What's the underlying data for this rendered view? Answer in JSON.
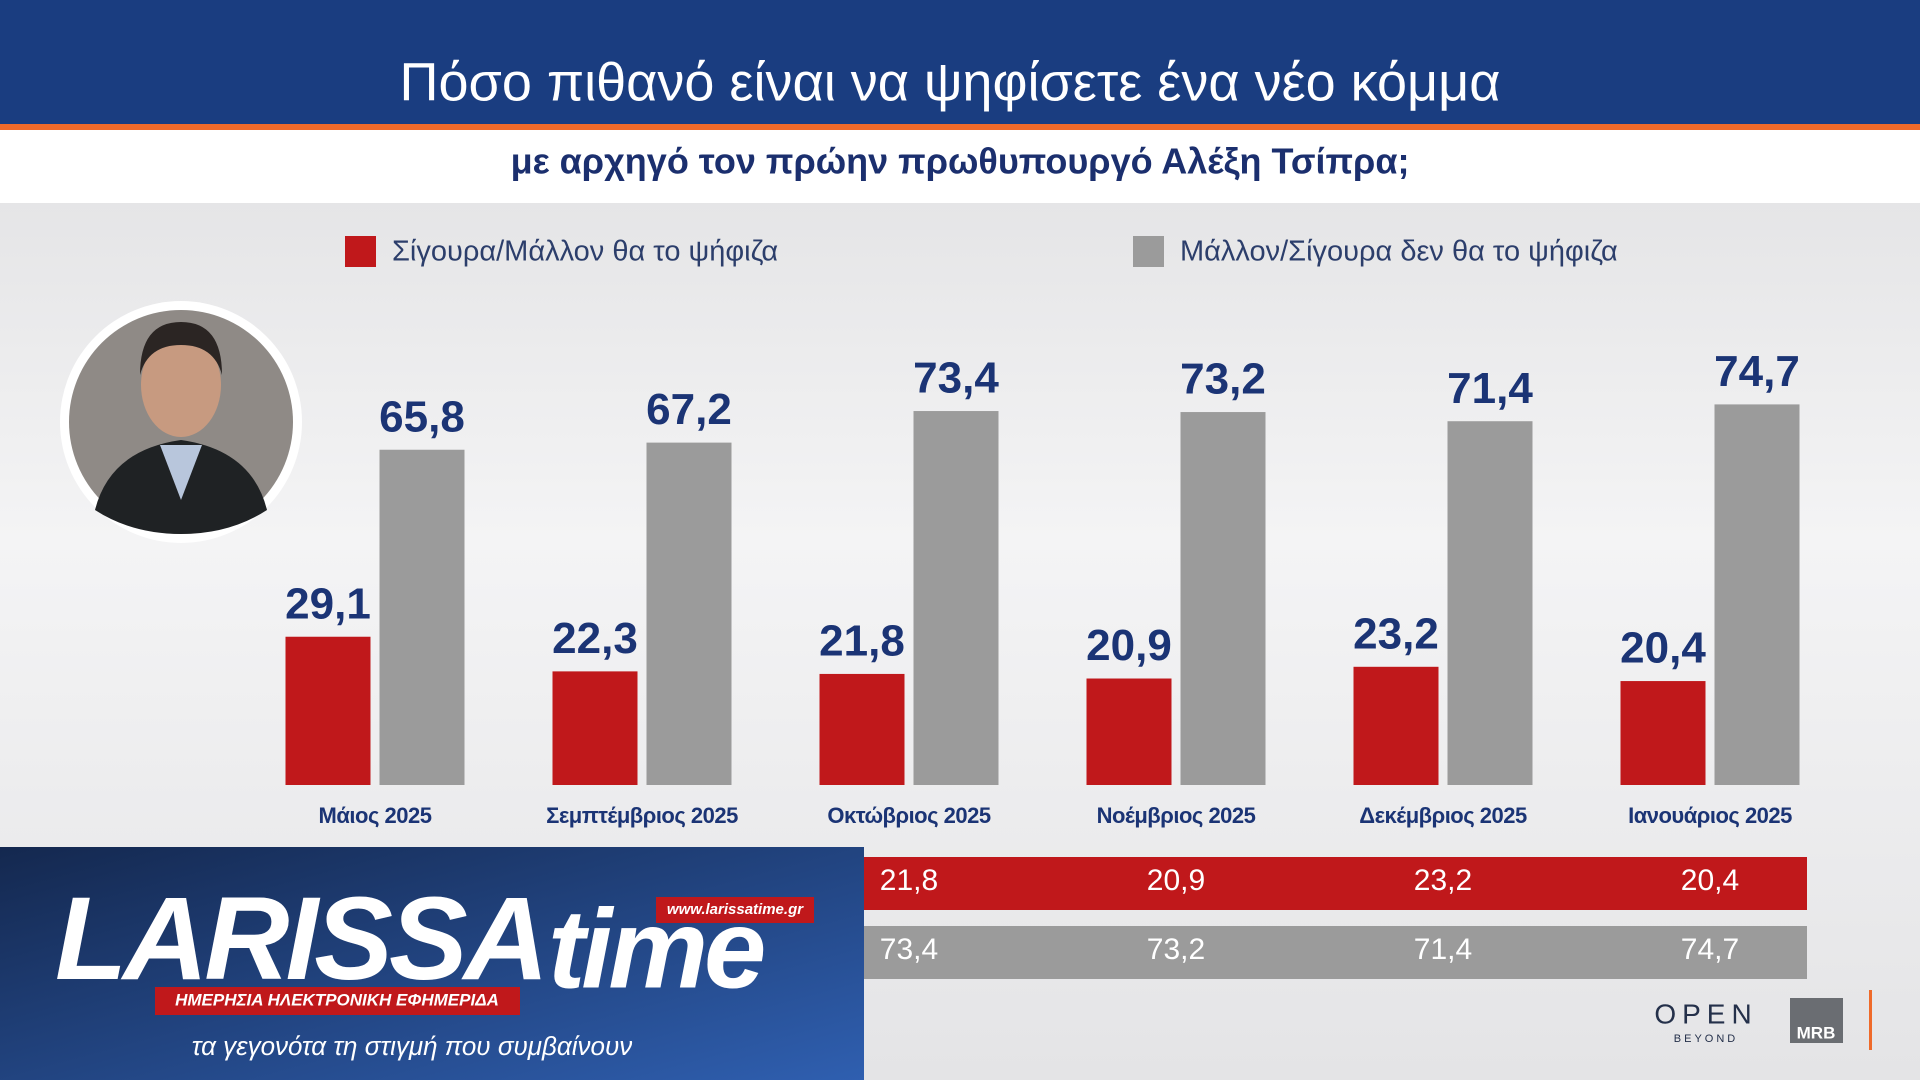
{
  "chart_data": {
    "type": "bar",
    "title": "Πόσο πιθανό είναι να ψηφίσετε ένα νέο κόμμα",
    "subtitle": "με αρχηγό τον πρώην πρωθυπουργό Αλέξη Τσίπρα;",
    "categories": [
      "Μάιος 2025",
      "Σεμπτέμβριος 2025",
      "Οκτώβριος 2025",
      "Νοέμβριος 2025",
      "Δεκέμβριος 2025",
      "Ιανουάριος 2025"
    ],
    "series": [
      {
        "name": "Σίγουρα/Μάλλον θα το ψήφιζα",
        "color": "#c0181b",
        "values": [
          29.1,
          22.3,
          21.8,
          20.9,
          23.2,
          20.4
        ],
        "value_labels": [
          "29,1",
          "22,3",
          "21,8",
          "20,9",
          "23,2",
          "20,4"
        ]
      },
      {
        "name": "Μάλλον/Σίγουρα δεν θα το ψήφιζα",
        "color": "#9b9b9b",
        "values": [
          65.8,
          67.2,
          73.4,
          73.2,
          71.4,
          74.7
        ],
        "value_labels": [
          "65,8",
          "67,2",
          "73,4",
          "73,2",
          "71,4",
          "74,7"
        ]
      }
    ],
    "ylim": [
      0,
      80
    ],
    "legend": "top"
  },
  "branding": {
    "logo_main": "LARISSA",
    "logo_second": "time",
    "url": "www.larissatime.gr",
    "tagline": "ΗΜΕΡΗΣΙΑ ΗΛΕΚΤΡΟΝΙΚΗ ΕΦΗΜΕΡΙΔΑ",
    "slogan": "τα γεγονότα τη στιγμή που συμβαίνουν",
    "channel": "OPEN",
    "channel_sub": "BEYOND",
    "pollster": "MRB"
  }
}
